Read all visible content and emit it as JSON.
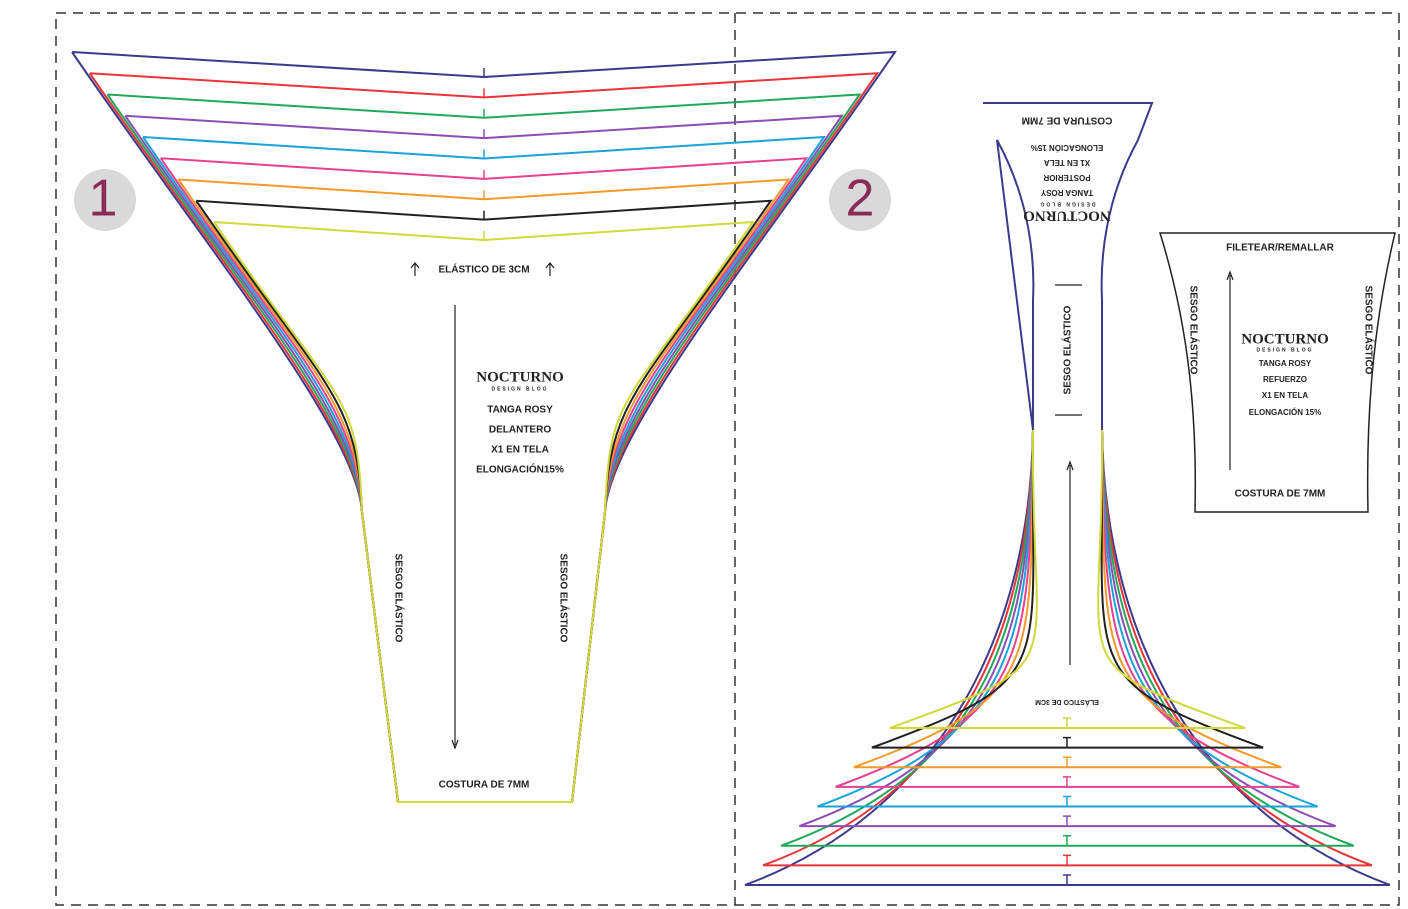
{
  "piece1": {
    "number": "1",
    "top_label": "ELÁSTICO DE 3CM",
    "side_left": "SESGO ELÁSTICO",
    "side_right": "SESGO ELÁSTICO",
    "bottom_label": "COSTURA DE 7MM",
    "brand": "NOCTURNO",
    "brand_sub": "DESIGN BLOG",
    "info": [
      "TANGA ROSY",
      "DELANTERO",
      "X1 EN TELA",
      "ELONGACIÓN15%"
    ]
  },
  "piece2": {
    "number": "2",
    "top_label": "COSTURA DE 7MM",
    "side": "SESGO ELÁSTICO",
    "bottom_label": "ELÁSTICO DE 3CM",
    "brand": "NOCTURNO",
    "brand_sub": "DESIGN BLOG",
    "info": [
      "TANGA ROSY",
      "POSTERIOR",
      "X1 EN TELA",
      "ELONGACIÓN 15%"
    ]
  },
  "piece3": {
    "top_label": "FILETEAR/REMALLAR",
    "side_left": "SESGO ELÁSTICO",
    "side_right": "SESGO ELÁSTICO",
    "bottom_label": "COSTURA DE 7MM",
    "brand": "NOCTURNO",
    "brand_sub": "DESIGN BLOG",
    "info": [
      "TANGA ROSY",
      "REFUERZO",
      "X1 EN TELA",
      "ELONGACIÓN 15%"
    ]
  }
}
